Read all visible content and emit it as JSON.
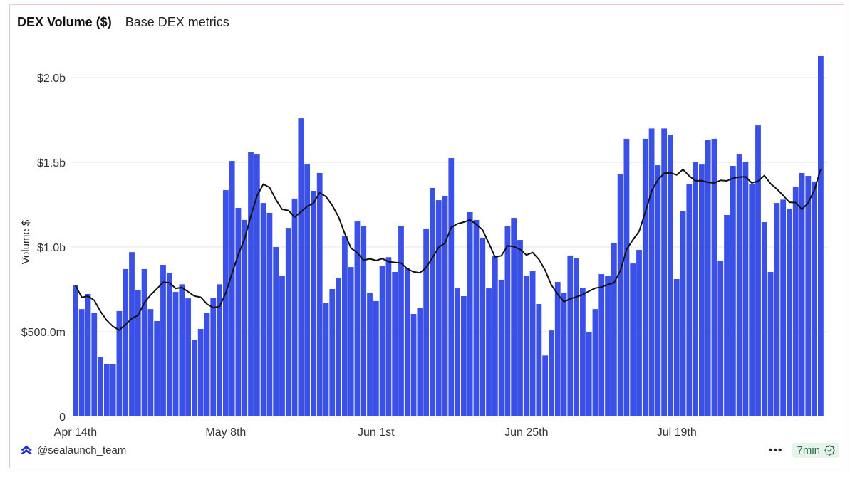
{
  "header": {
    "title": "DEX Volume ($)",
    "subtitle": "Base DEX metrics"
  },
  "footer": {
    "author": "@sealaunch_team",
    "more_icon": "ellipsis-icon",
    "freshness": "7min",
    "freshness_icon": "check-badge-icon",
    "logo_icon": "sealaunch-logo-icon"
  },
  "colors": {
    "bar": "#3b50e6",
    "line": "#111111",
    "grid": "#e4e4e8",
    "badge_bg": "#e6f4ec",
    "badge_text": "#2f6b45"
  },
  "chart_data": {
    "type": "bar",
    "title": "DEX Volume ($)",
    "ylabel": "Volume $",
    "xlabel": "",
    "ylim": [
      0,
      2.2
    ],
    "y_unit": "billions USD",
    "y_ticks": [
      {
        "value": 0,
        "label": "0"
      },
      {
        "value": 0.5,
        "label": "$500.0m"
      },
      {
        "value": 1.0,
        "label": "$1.0b"
      },
      {
        "value": 1.5,
        "label": "$1.5b"
      },
      {
        "value": 2.0,
        "label": "$2.0b"
      }
    ],
    "x_ticks": [
      {
        "index": 0,
        "label": "Apr 14th"
      },
      {
        "index": 24,
        "label": "May 8th"
      },
      {
        "index": 48,
        "label": "Jun 1st"
      },
      {
        "index": 72,
        "label": "Jun 25th"
      },
      {
        "index": 96,
        "label": "Jul 19th"
      }
    ],
    "x_start": "Apr 14",
    "x_interval": "daily",
    "grid": true,
    "overlay": "moving average line",
    "values": [
      0.773,
      0.634,
      0.723,
      0.613,
      0.353,
      0.311,
      0.311,
      0.622,
      0.87,
      0.97,
      0.744,
      0.87,
      0.634,
      0.563,
      0.895,
      0.849,
      0.735,
      0.78,
      0.697,
      0.454,
      0.517,
      0.613,
      0.7,
      0.78,
      1.336,
      1.508,
      1.231,
      1.16,
      1.559,
      1.546,
      1.26,
      1.202,
      1.0,
      0.832,
      1.113,
      1.286,
      1.76,
      1.487,
      1.332,
      1.437,
      0.668,
      0.752,
      0.815,
      1.067,
      0.882,
      1.151,
      1.122,
      0.727,
      0.681,
      0.89,
      0.94,
      0.853,
      1.126,
      0.878,
      0.605,
      0.643,
      1.109,
      1.349,
      1.277,
      1.302,
      1.525,
      0.756,
      0.71,
      1.206,
      1.16,
      1.055,
      0.756,
      0.945,
      0.807,
      1.122,
      1.172,
      1.042,
      0.828,
      0.857,
      0.664,
      0.36,
      0.508,
      0.794,
      0.727,
      0.95,
      0.937,
      0.76,
      0.5,
      0.634,
      0.84,
      0.828,
      1.025,
      1.429,
      1.639,
      0.903,
      0.983,
      1.639,
      1.7,
      1.483,
      1.7,
      1.664,
      0.811,
      1.21,
      1.37,
      1.5,
      1.487,
      1.63,
      1.639,
      0.92,
      1.189,
      1.479,
      1.546,
      1.504,
      1.37,
      1.718,
      1.147,
      0.853,
      1.26,
      1.28,
      1.223,
      1.353,
      1.437,
      1.42,
      1.387,
      2.126
    ]
  }
}
